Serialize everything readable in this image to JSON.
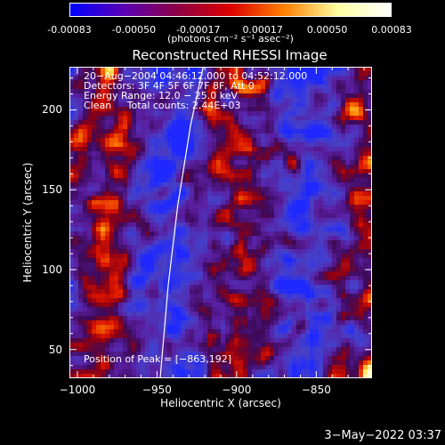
{
  "colorbar": {
    "ticks": [
      "-0.00083",
      "-0.00050",
      "-0.00017",
      "0.00017",
      "0.00050",
      "0.00083"
    ],
    "unit": "(photons cm⁻² s⁻¹ asec⁻²)",
    "colors": [
      "#0000ff",
      "#5a00b4",
      "#8c0046",
      "#dc0000",
      "#ff8000",
      "#ffffa0",
      "#ffffff"
    ]
  },
  "chart_data": {
    "type": "heatmap",
    "title": "Reconstructed RHESSI Image",
    "xlabel": "Heliocentric X (arcsec)",
    "ylabel": "Heliocentric Y (arcsec)",
    "xlim": [
      -1005,
      -815
    ],
    "ylim": [
      32,
      227
    ],
    "xticks": [
      "−1000",
      "−950",
      "−900",
      "−850"
    ],
    "xtick_values": [
      -1000,
      -950,
      -900,
      -850
    ],
    "yticks": [
      "50",
      "100",
      "150",
      "200"
    ],
    "ytick_values": [
      50,
      100,
      150,
      200
    ],
    "value_range": [
      -0.00083,
      0.00083
    ],
    "limb_curve": [
      [
        -948,
        32
      ],
      [
        -943,
        90
      ],
      [
        -937,
        140
      ],
      [
        -929,
        190
      ],
      [
        -921,
        227
      ]
    ],
    "peak": [
      -863,
      192
    ]
  },
  "annotations": {
    "time_range": "20−Aug−2004 04:46:12.000 to 04:52:12.000",
    "detectors": "Detectors: 3F 4F 5F 6F 7F 8F, Att 0",
    "energy": "Energy Range: 12.0 − 25.0 keV",
    "clean": "Clean     Total counts: 2.44E+03",
    "peak_text": "Position of Peak = [−863,192]"
  },
  "timestamp": "3−May−2022 03:37"
}
